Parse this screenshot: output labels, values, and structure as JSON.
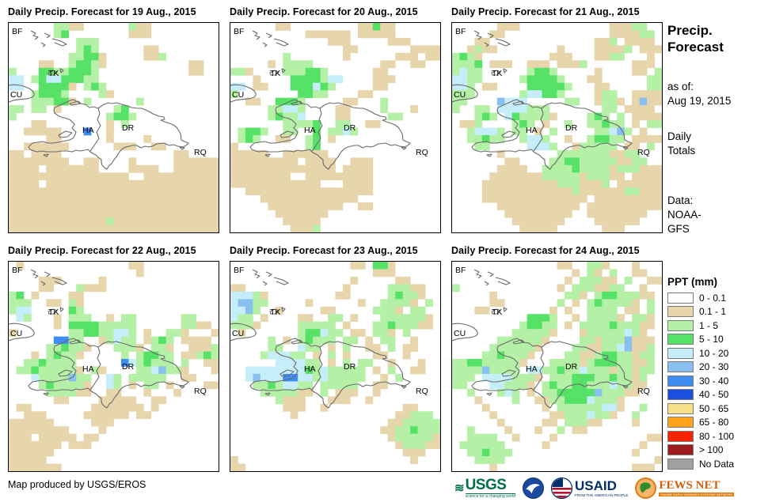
{
  "maps": [
    {
      "title": "Daily Precip. Forecast for 19 Aug., 2015",
      "grid": [
        "......ggtt......gtt.........",
        "......gG........ttt.........",
        ".........ggg................",
        ".........gGg......tt........",
        "........ggGGt.....ttg.......",
        "....tt..gGGgt...........tt..",
        "g...GGggGGGg............tt..",
        "cc.gGccGGGgg................",
        "cc..GGGGt.gGg...............",
        "...gGGGg....gt..............",
        "...gggGGt.g......g..........",
        "gg.gg.t.......gG............",
        "g............gGGg...........",
        "...tt........t.g............",
        "..ttttt...B..t..............",
        ".....tt......t....t.........",
        "..tttttt......ttt..tt.......",
        "tt.tttt...............tt....",
        "tttttttt..tt....t.....tttttt",
        "tttt.ttttttt....tttt..tttttt",
        "tttttttttttttttt..tttttttttt",
        "tttt.ttttttttttttttttttttttt",
        "tttttttttttttttttttttttttttt",
        "tttttttttttttttttttttttttttt",
        "tttttttttttttttttttttttttttt",
        "tttttttttttttttttttttttttttt",
        "tttttttttttttgtttttttttttttt",
        "tttttttttttttttttttttttttttt"
      ]
    },
    {
      "title": "Daily Precip. Forecast for 20 Aug., 2015",
      "grid": [
        "......tt.........ttGtt......",
        "..........tttttt.ttttt......",
        ".............ttt.....ttt....",
        "...............tt.......tttt",
        ".......g.......t......ttt.tt",
        ".....t.gggg.........tt..tt..",
        "ggt....gggGGg......tt.......",
        "...t....GGGGgcc....ttt......",
        "cc.tt...GGGcGg.....tt.......",
        "g........GGgg....tt.........",
        "..tt..GGGg.....tt...g.......",
        ".....ggccg....tt....g...t...",
        ".....gGggc....tt.....gg.....",
        ".......ggggG..gg..tt........",
        ".gGGg..gg..G.ggcg...........",
        ".gGg..tt..gG.t..............",
        "t.........gG................",
        "ttttt..tttttt...............",
        "ttttttttt.tttt..ttt.........",
        "tttttttttttttt.tttt.........",
        "tttttttt..ttttttttt.........",
        "tttttttttttt...tttt.........",
        "..ttttttttttttttttt.........",
        "....ttttttttttttt...........",
        ".....tttttttttt..tt.........",
        "......ttttttt...............",
        ".......ttttt................",
        "........tttg................"
      ]
    },
    {
      "title": "Daily Precip. Forecast for 21 Aug., 2015",
      "grid": [
        "......ttt............tttgg..",
        ".....tt..............ttttgg.",
        "...tt..............ttg.tttt.",
        "..tgtt........t....ttttg.ttt",
        "gGgt.........ttt...ttgg...t.",
        "gggG.ttt..ttt.tttg......ttt.",
        "gcgg......gGGg.....t....tt.g",
        "ccgg.....gGGGGg...tt......gg",
        "ccg.tt....GGGGGg...tt.....gg",
        "ggg......gccGGg....tgg..tttt",
        "gg....bccc.....gg..tggt.tbtt",
        "g..gg.ccccggg.......gg.tttt.",
        "...gGg.cGggggt....gGg.g.tttt",
        ".ttg....gGg.t..g..ggGgg.t.gg",
        "..gcccg.gg.t.g.....ggcbg.t..",
        "..ggGgg..gccg..t..gGGgg.tttt",
        "...gg.....cccg..tggggg.tt.g.",
        "......t.......gggggggttgg...",
        ".......tt....ggGGgggggttgg..",
        "......tttt..ggggGggggtgggttt",
        ".....tttttttgggggtgggtt.tttt",
        "....ttttttttttgggtttg.tttttt",
        "....ttttttttttttgttttttggttt",
        "....tttttttttttttt.ttttttttt",
        "......ttttttttttt.tttttttttt",
        ".......ttttttttt..tttttttt..",
        "........ttttttt....tttttt...",
        ".........ttttt......ttt....."
      ]
    },
    {
      "title": "Daily Precip. Forecast for 22 Aug., 2015",
      "grid": [
        ".t..............tt..........",
        ".................t..........",
        "....ttt.....t...............",
        "....tt...gttt...............",
        "gG.t....tt..................",
        "ggg..tt.gt..................",
        "gcc.....Gg..................",
        ".cg...t.ggg..t.gg......gg...",
        "......t.GGGGggggg......ggtt.",
        "t.......ggGGggccg.t..ggt...t",
        "......BBgg..tgcgg.tgGg.tttt.",
        ".....ggGggt...gggt.ggt..tttg",
        "...t.gGggt.....g.gGGgg.ttgGg",
        "..ggGgggg......BcgGggg.g..tt",
        ".ggGgggggt.gt....ggcbggt...t",
        "...cggggbgg..cg.ggggg..tt...",
        "....gGggggt..cg.t.gg.t....tt",
        ".....ggggtt..tt...t...t.....",
        "......tt....ttttt..tt.......",
        ".tt........ttttttt.t........",
        "..ttt.....tttttt.tt.........",
        "tttttt.....ttt..............",
        "tttttttt....t...............",
        "ttt.ttttt.tt................",
        "ttttttt.ttt.................",
        "tttttt......................",
        "ttttt.......................",
        "ttttttt....................."
      ]
    },
    {
      "title": "Daily Precip. Forecast for 23 Aug., 2015",
      "grid": [
        "................tt.GGt......",
        "...................ttt......",
        "................t.....tt....",
        "tt.............t.....gggtt..",
        "cccgt.........tt.....gGggt..",
        "cbbgg.....t......t..ggggt.g.",
        "ccbg..t.....tt.....gggt.gg..",
        "cgg.t....tt..gg.t...ggggggt.",
        "gggt.....ggggg.t...ggGgggtt.",
        ".t.......gGGcgg.tt.ggt.g....",
        ".....g.t.gGggg.gg.t.gg..t...",
        ".....gg..cgg.t.g..tt.g.tt...",
        "....gcccgg.t.g.t...tt..t....",
        "......ccccgg.t.g.gg..t...t..",
        "..ccccccccGgcggggg.t.g..tt..",
        "..cbcccBBccgcggggg..t.g.....",
        "...ggGgccgg.ggggg..tt.......",
        "....gggggtt.g.ttt..t........",
        "......gttt...ttt..t.........",
        ".......ttt..t..........tt...",
        "........t.............ttggg.",
        ".....................ttggggg",
        "....................ttggGggg",
        ".....................tgggggt",
        "......................tgggtt",
        ".......................ttt..",
        "t.......................t...",
        "tt.........................."
      ]
    },
    {
      "title": "Daily Precip. Forecast for 24 Aug., 2015",
      "grid": [
        "..............tt..ggt...t...",
        "................t.gt.g..tt..",
        "...............t.gggtt.g..tt",
        "g.............t.gggttgg..t..",
        ".....t.........ggt.gGGgggtt.",
        ".....tt.......g.t.gGggggt.g.",
        "...tt........t.t..gggg.tt.g.",
        "..........GGGg..t.ggggt.ggt.",
        ".........gGGgg.t.ggggGgggtt.",
        "........gggggt...tgggggcgt..",
        "......ggggggt....ggtgggbttt.",
        ".....ggggggt....ggttggcbttg.",
        "....ggGgggt....ggttgGGggtgg.",
        "ggGGgggggt...ggggtgGGGggttg.",
        "ggggbgggg.ccggGggcgggtggtgg.",
        "ggg.ccccgggt.gggGGGggGggtg..",
        "gg...ccgggt.gGggGGgggcggtt..",
        "..g...gcg.t.ggGGGGGbgggtt...",
        "...t....g..ttggGGGcgggt.....",
        "....t.......t.ggggggcct..g..",
        ".....t.......ttgggcggt..g...",
        "......t.....tt.gggtt....t...",
        "..g....t...t..g.tt..........",
        "..gggg..t....t............tt",
        ".gggggg.....t............t..",
        "..ggGggg................t...",
        "...gggg....................t",
        ".....t..................ttt."
      ]
    }
  ],
  "grid_size": 28,
  "palette": {
    "t": "#e7d5ab",
    "g": "#b4f0a5",
    "G": "#55e266",
    "c": "#c5eefa",
    "b": "#88c0f0",
    "B": "#3e8df2"
  },
  "map_labels": [
    "BF",
    "TK",
    "CU",
    "HA",
    "DR",
    "RQ"
  ],
  "sidebar": {
    "title": "Precip.\nForecast",
    "as_of": "as of:\nAug 19, 2015",
    "totals": "Daily\nTotals",
    "data_source": "Data:\nNOAA-\nGFS"
  },
  "legend": {
    "title": "PPT (mm)",
    "items": [
      {
        "label": "0 - 0.1",
        "color": "#ffffff"
      },
      {
        "label": "0.1 - 1",
        "color": "#e7d5ab"
      },
      {
        "label": "1 - 5",
        "color": "#b4f0a5"
      },
      {
        "label": "5 - 10",
        "color": "#55e266"
      },
      {
        "label": "10 - 20",
        "color": "#c5eefa"
      },
      {
        "label": "20 - 30",
        "color": "#88c0f0"
      },
      {
        "label": "30 - 40",
        "color": "#3e8df2"
      },
      {
        "label": "40 - 50",
        "color": "#1b4fe0"
      },
      {
        "label": "50 - 65",
        "color": "#f8e089"
      },
      {
        "label": "65 - 80",
        "color": "#ffa41c"
      },
      {
        "label": "80 - 100",
        "color": "#fb2305"
      },
      {
        "label": "> 100",
        "color": "#9e1b20"
      },
      {
        "label": "No Data",
        "color": "#a0a0a0"
      }
    ]
  },
  "footer": {
    "credit": "Map produced by USGS/EROS",
    "usgs_text": "USGS",
    "usgs_tagline": "science for a changing world",
    "usaid_text": "USAID",
    "usaid_tagline": "FROM THE AMERICAN PEOPLE",
    "fewsnet_text": "FEWS NET",
    "fewsnet_tagline": "FAMINE EARLY WARNING SYSTEMS NETWORK",
    "logos": [
      "usgs-logo",
      "noaa-logo",
      "usaid-logo",
      "fewsnet-logo"
    ]
  }
}
